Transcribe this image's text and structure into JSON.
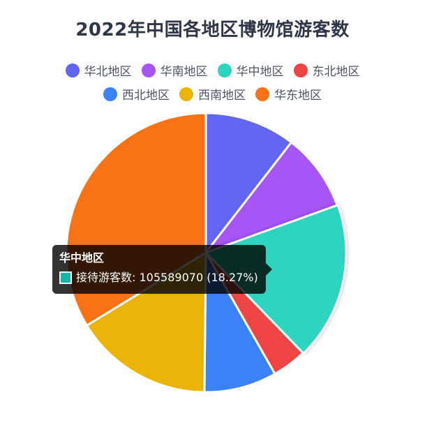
{
  "chart_data": {
    "type": "pie",
    "title": "2022年中国各地区博物馆游客数",
    "legend_position": "top",
    "series_label": "接待游客数",
    "slices": [
      {
        "name": "华北地区",
        "value": 60650000,
        "color": "#6366f1"
      },
      {
        "name": "华南地区",
        "value": 52010000,
        "color": "#a855f7"
      },
      {
        "name": "华中地区",
        "value": 105589070,
        "color": "#2dd4bf",
        "percent": "18.27%"
      },
      {
        "name": "东北地区",
        "value": 23120000,
        "color": "#ef4444"
      },
      {
        "name": "西北地区",
        "value": 48550000,
        "color": "#3b82f6"
      },
      {
        "name": "西南地区",
        "value": 93060000,
        "color": "#eab308"
      },
      {
        "name": "华东地区",
        "value": 195010000,
        "color": "#f97316"
      }
    ]
  },
  "tooltip": {
    "title": "华中地区",
    "label": "接待游客数",
    "value": "105589070",
    "percent": "(18.27%)",
    "swatch_color": "#14b8a6"
  }
}
